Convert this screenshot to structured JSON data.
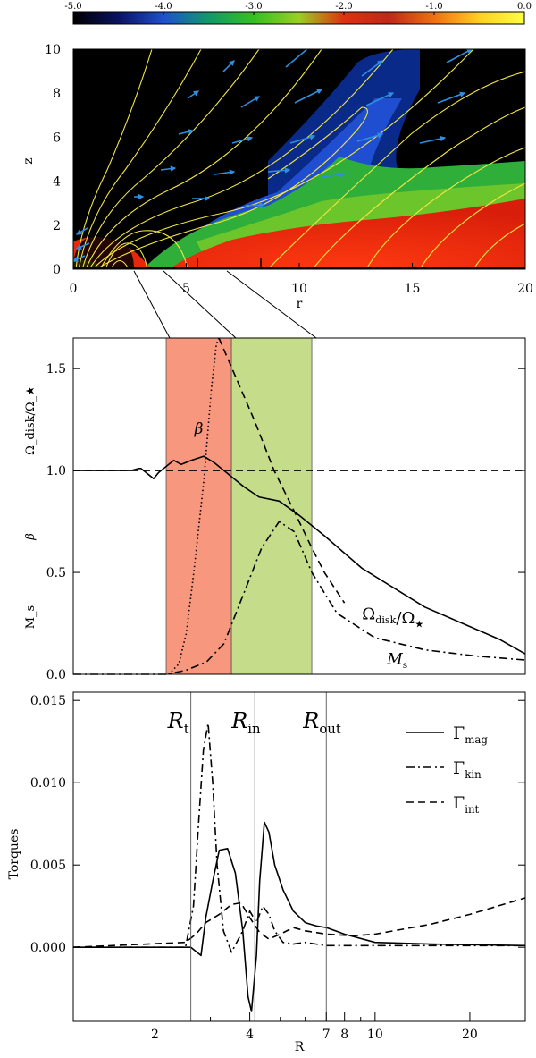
{
  "colorbar": {
    "ticks": [
      "-5.0",
      "-4.0",
      "-3.0",
      "-2.0",
      "-1.0",
      "0.0"
    ],
    "range": [
      -5.0,
      0.0
    ],
    "stops": [
      "#000000",
      "#0a1260",
      "#1f4fd0",
      "#0f9a6a",
      "#35c020",
      "#9bcf20",
      "#e03010",
      "#c02818",
      "#f07010",
      "#ffd020",
      "#ffff40"
    ]
  },
  "chart_data": [
    {
      "type": "heatmap",
      "title": "",
      "xlabel": "r",
      "ylabel": "z",
      "xlim": [
        0,
        20
      ],
      "ylim": [
        0,
        10
      ],
      "x_ticks": [
        "0",
        "5",
        "10",
        "15",
        "20"
      ],
      "y_ticks": [
        "0",
        "2",
        "4",
        "6",
        "8",
        "10"
      ],
      "markers_r": [
        5.5,
        8.3
      ],
      "fieldline_color": "#f2e640",
      "arrow_color": "#2e8fe0",
      "colors": {
        "background": "#000000",
        "disk": "#e8280c",
        "corona": "#2fae3a",
        "jet": "#0a2a8a"
      }
    },
    {
      "type": "line",
      "title": "",
      "xlabel": "",
      "ylabel_labels": [
        "Ω_disk/Ω_★",
        "β",
        "M_s"
      ],
      "ylim": [
        0,
        1.65
      ],
      "y_ticks": [
        "0.0",
        "0.5",
        "1.0",
        "1.5"
      ],
      "bands": [
        {
          "from": 0.37,
          "to": 0.63,
          "color": "#f7977e"
        },
        {
          "from": 0.63,
          "to": 0.95,
          "color": "#c5dd8a"
        }
      ],
      "series": [
        {
          "name": "Ω_disk/Ω_★",
          "style": "solid",
          "x": [
            0.0,
            0.23,
            0.26,
            0.27,
            0.29,
            0.32,
            0.34,
            0.37,
            0.4,
            0.43,
            0.47,
            0.52,
            0.56,
            0.63,
            0.68,
            0.74,
            0.82,
            0.9,
            1.0,
            1.15,
            1.4,
            1.7,
            1.8
          ],
          "y": [
            1.0,
            1.0,
            1.01,
            1.01,
            0.99,
            0.96,
            0.99,
            1.02,
            1.05,
            1.03,
            1.05,
            1.07,
            1.04,
            0.97,
            0.92,
            0.87,
            0.85,
            0.78,
            0.68,
            0.52,
            0.33,
            0.17,
            0.1
          ]
        },
        {
          "name": "β",
          "style": "dotted",
          "x": [
            0.38,
            0.42,
            0.45,
            0.48,
            0.52,
            0.55,
            0.57,
            0.58
          ],
          "y": [
            0.0,
            0.05,
            0.2,
            0.5,
            0.95,
            1.4,
            1.62,
            1.65
          ]
        },
        {
          "name": "",
          "style": "dashed",
          "x": [
            0.0,
            1.8
          ],
          "y": [
            1.0,
            1.0
          ]
        },
        {
          "name": "",
          "style": "dashed",
          "x": [
            0.58,
            0.65,
            0.72,
            0.8,
            0.88,
            0.95,
            1.0,
            1.08
          ],
          "y": [
            1.65,
            1.45,
            1.25,
            1.0,
            0.8,
            0.62,
            0.5,
            0.35
          ]
        },
        {
          "name": "M_s",
          "style": "dashdot",
          "x": [
            0.0,
            0.37,
            0.45,
            0.53,
            0.6,
            0.68,
            0.75,
            0.82,
            0.88,
            0.95,
            1.05,
            1.2,
            1.4,
            1.6,
            1.8
          ],
          "y": [
            0.0,
            0.0,
            0.02,
            0.06,
            0.15,
            0.4,
            0.62,
            0.75,
            0.7,
            0.5,
            0.3,
            0.18,
            0.12,
            0.09,
            0.07
          ]
        }
      ],
      "annotations": [
        {
          "text": "β",
          "at": [
            0.5,
            1.18
          ]
        },
        {
          "text": "Ω_disk/Ω_★",
          "at": [
            1.15,
            0.27
          ]
        },
        {
          "text": "M_s",
          "at": [
            1.25,
            0.05
          ]
        }
      ]
    },
    {
      "type": "line",
      "title": "",
      "xlabel": "R",
      "ylabel": "Torques",
      "xscale": "log",
      "xlim": [
        1.1,
        30
      ],
      "ylim": [
        -0.0045,
        0.0155
      ],
      "y_ticks": [
        "0.000",
        "0.005",
        "0.010",
        "0.015"
      ],
      "x_ticks": [
        "2",
        "4",
        "7",
        "8",
        "10",
        "20"
      ],
      "vlines": [
        {
          "label": "R_t",
          "x": 2.6
        },
        {
          "label": "R_in",
          "x": 4.15
        },
        {
          "label": "R_out",
          "x": 7.0
        }
      ],
      "series": [
        {
          "name": "Γ_mag",
          "style": "solid",
          "x": [
            1.1,
            2.6,
            2.8,
            2.9,
            3.05,
            3.2,
            3.4,
            3.6,
            3.8,
            3.95,
            4.05,
            4.2,
            4.3,
            4.45,
            4.6,
            4.8,
            5.1,
            5.5,
            6.0,
            6.5,
            7.0,
            8.0,
            10.0,
            15.0,
            30.0
          ],
          "y": [
            0.0,
            0.0,
            -0.0005,
            0.0018,
            0.004,
            0.0059,
            0.006,
            0.0045,
            0.001,
            -0.003,
            -0.0039,
            -0.0005,
            0.004,
            0.0076,
            0.007,
            0.005,
            0.0035,
            0.0022,
            0.0015,
            0.0013,
            0.0012,
            0.0008,
            0.0003,
            0.0002,
            0.0001
          ]
        },
        {
          "name": "Γ_kin",
          "style": "dashdot",
          "x": [
            1.1,
            2.5,
            2.65,
            2.75,
            2.85,
            2.95,
            3.05,
            3.15,
            3.3,
            3.5,
            3.8,
            4.0,
            4.2,
            4.4,
            4.6,
            4.8,
            5.1,
            5.5,
            6.0,
            7.0,
            10.0,
            30.0
          ],
          "y": [
            0.0,
            0.0,
            0.0025,
            0.0075,
            0.012,
            0.0136,
            0.01,
            0.005,
            0.001,
            -0.0003,
            0.001,
            0.0022,
            0.0015,
            0.0025,
            0.002,
            0.001,
            0.0003,
            0.0002,
            0.0003,
            0.0001,
            0.0001,
            0.0001
          ]
        },
        {
          "name": "Γ_int",
          "style": "dashed",
          "x": [
            1.1,
            2.5,
            2.7,
            2.9,
            3.2,
            3.5,
            3.75,
            4.0,
            4.3,
            4.6,
            5.0,
            5.5,
            6.0,
            7.0,
            8.5,
            10.0,
            15.0,
            20.0,
            30.0
          ],
          "y": [
            0.0,
            0.0003,
            0.0008,
            0.0015,
            0.002,
            0.0026,
            0.0027,
            0.0018,
            0.0009,
            0.0005,
            0.0008,
            0.0012,
            0.001,
            0.0008,
            0.0007,
            0.0008,
            0.0014,
            0.002,
            0.003
          ]
        }
      ]
    }
  ]
}
